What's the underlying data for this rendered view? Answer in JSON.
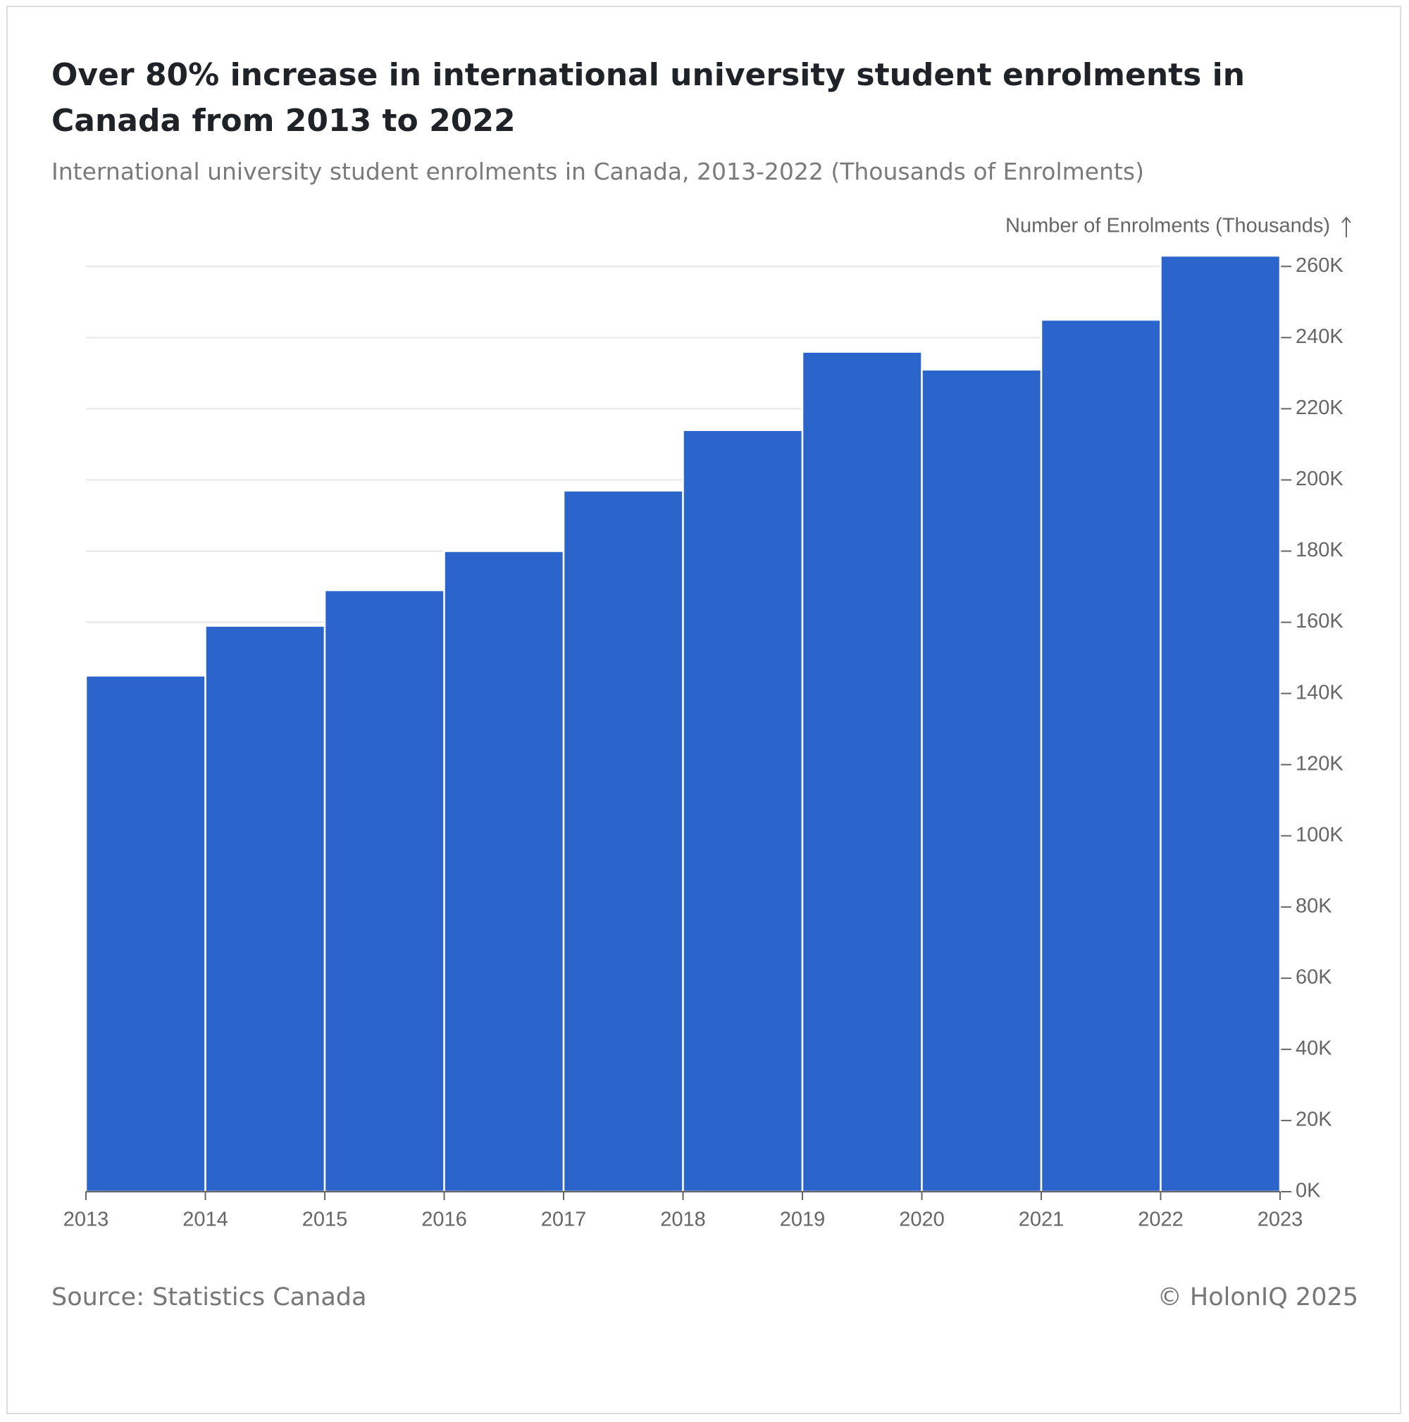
{
  "chart_data": {
    "type": "histogram",
    "title": "Over 80% increase in international university student enrolments in Canada from 2013 to 2022",
    "subtitle": "International university student enrolments in Canada, 2013-2022 (Thousands of Enrolments)",
    "y_axis_label": "Number of Enrolments (Thousands)",
    "bins": [
      2013,
      2014,
      2015,
      2016,
      2017,
      2018,
      2019,
      2020,
      2021,
      2022,
      2023
    ],
    "values": [
      145,
      159,
      169,
      180,
      197,
      214,
      236,
      231,
      245,
      263
    ],
    "color": "#2b65cc",
    "xlim": [
      2013,
      2023
    ],
    "ylim": [
      0,
      265
    ],
    "yticks": [
      {
        "value": 0,
        "label": "0K"
      },
      {
        "value": 20,
        "label": "20K"
      },
      {
        "value": 40,
        "label": "40K"
      },
      {
        "value": 60,
        "label": "60K"
      },
      {
        "value": 80,
        "label": "80K"
      },
      {
        "value": 100,
        "label": "100K"
      },
      {
        "value": 120,
        "label": "120K"
      },
      {
        "value": 140,
        "label": "140K"
      },
      {
        "value": 160,
        "label": "160K"
      },
      {
        "value": 180,
        "label": "180K"
      },
      {
        "value": 200,
        "label": "200K"
      },
      {
        "value": 220,
        "label": "220K"
      },
      {
        "value": 240,
        "label": "240K"
      },
      {
        "value": 260,
        "label": "260K"
      }
    ],
    "grid": true,
    "source": "Source: Statistics Canada",
    "credit": "© HolonIQ 2025"
  }
}
